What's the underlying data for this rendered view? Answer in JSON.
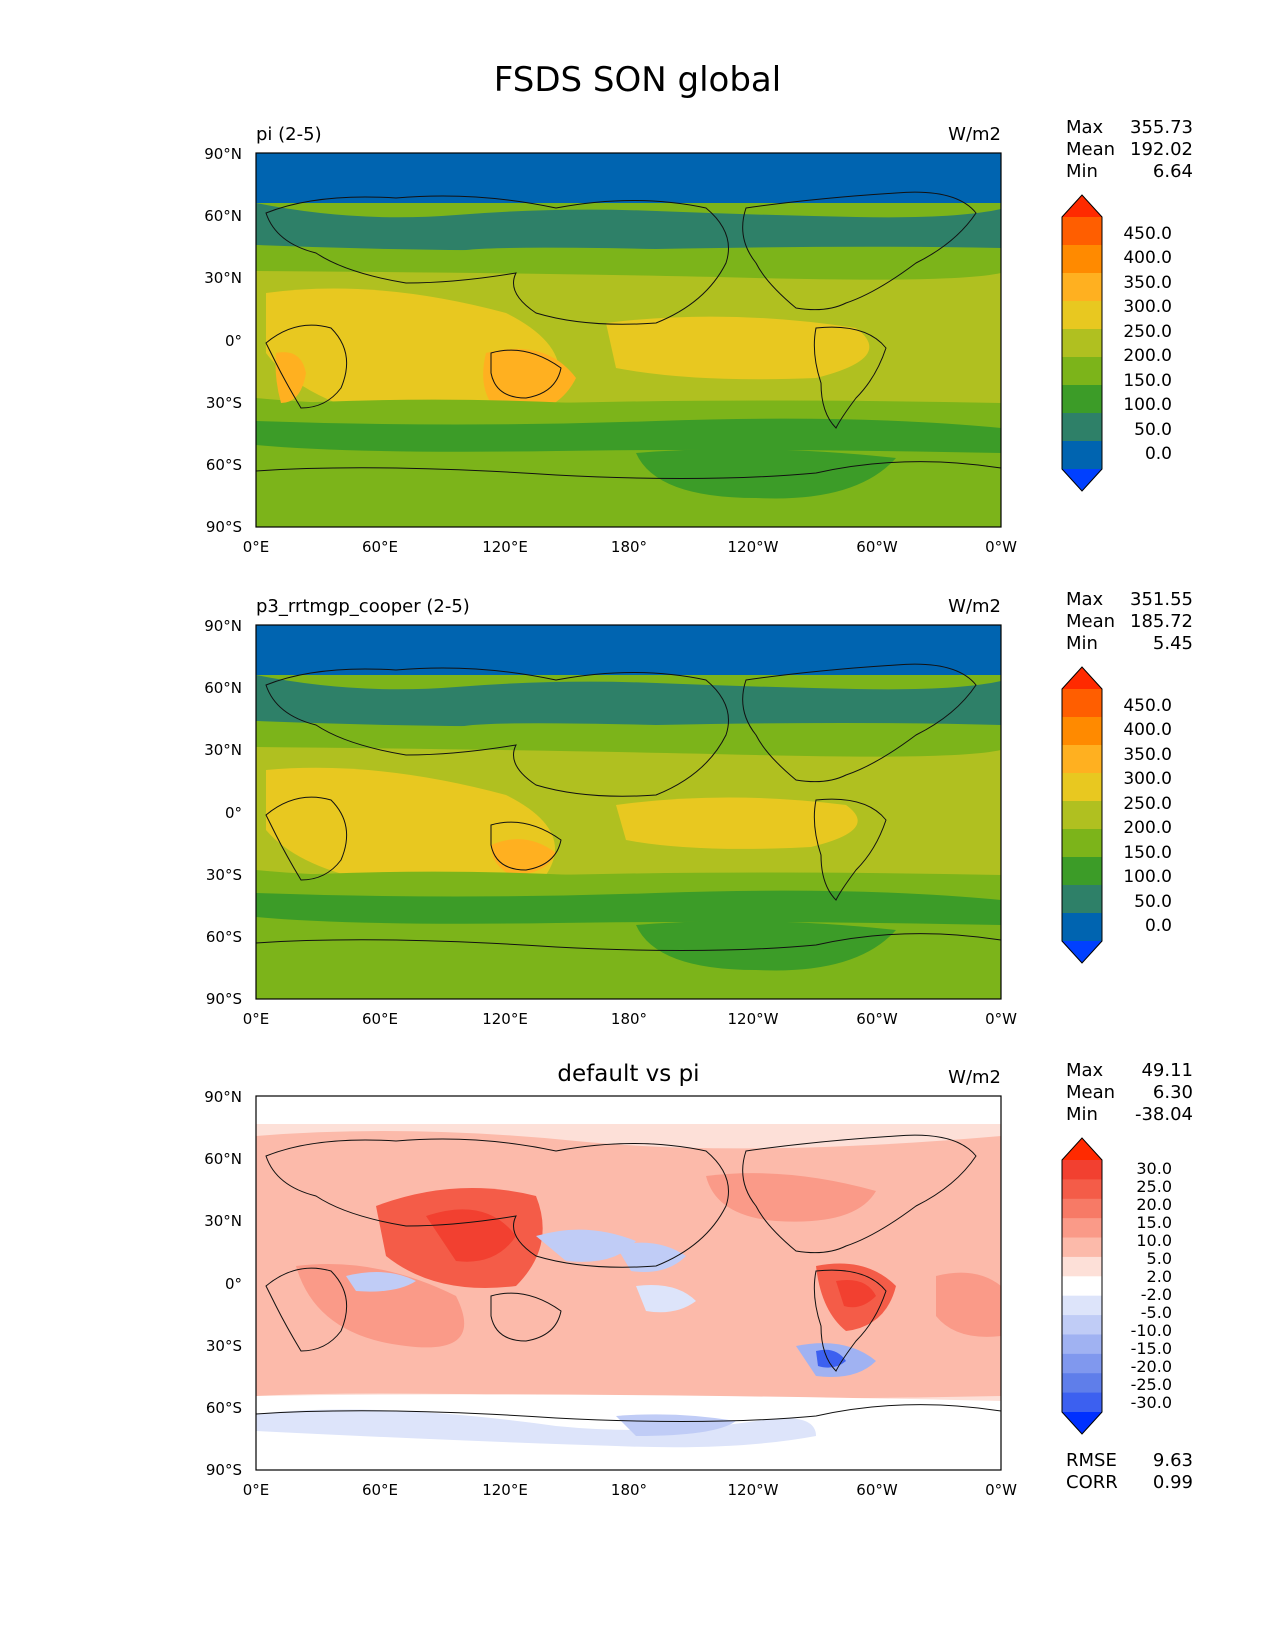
{
  "title": "FSDS SON global",
  "panels": [
    {
      "title": "pi (2-5)",
      "units": "W/m2",
      "stats": [
        {
          "name": "Max",
          "value": "355.73"
        },
        {
          "name": "Mean",
          "value": "192.02"
        },
        {
          "name": "Min",
          "value": "6.64"
        }
      ],
      "colorbar_labels": [
        "450.0",
        "400.0",
        "350.0",
        "300.0",
        "250.0",
        "200.0",
        "150.0",
        "100.0",
        "50.0",
        "0.0"
      ],
      "colorbar_colors_top_to_bottom": [
        "#ff2a00",
        "#ff5e00",
        "#ff8a00",
        "#ffb020",
        "#e8c820",
        "#b0c020",
        "#7cb41a",
        "#3c9c28",
        "#2e8068",
        "#0064b0",
        "#0040ff"
      ]
    },
    {
      "title": "p3_rrtmgp_cooper (2-5)",
      "units": "W/m2",
      "stats": [
        {
          "name": "Max",
          "value": "351.55"
        },
        {
          "name": "Mean",
          "value": "185.72"
        },
        {
          "name": "Min",
          "value": "5.45"
        }
      ],
      "colorbar_labels": [
        "450.0",
        "400.0",
        "350.0",
        "300.0",
        "250.0",
        "200.0",
        "150.0",
        "100.0",
        "50.0",
        "0.0"
      ],
      "colorbar_colors_top_to_bottom": [
        "#ff2a00",
        "#ff5e00",
        "#ff8a00",
        "#ffb020",
        "#e8c820",
        "#b0c020",
        "#7cb41a",
        "#3c9c28",
        "#2e8068",
        "#0064b0",
        "#0040ff"
      ]
    },
    {
      "title": "default vs pi",
      "units": "W/m2",
      "stats": [
        {
          "name": "Max",
          "value": "49.11"
        },
        {
          "name": "Mean",
          "value": "6.30"
        },
        {
          "name": "Min",
          "value": "-38.04"
        }
      ],
      "colorbar_labels": [
        "30.0",
        "25.0",
        "20.0",
        "15.0",
        "10.0",
        "5.0",
        "2.0",
        "-2.0",
        "-5.0",
        "-10.0",
        "-15.0",
        "-20.0",
        "-25.0",
        "-30.0"
      ],
      "colorbar_colors_top_to_bottom": [
        "#ff2a00",
        "#f24030",
        "#f45c48",
        "#f77a66",
        "#fa9a88",
        "#fcbaaa",
        "#fde0d8",
        "#ffffff",
        "#dde4fa",
        "#c0ccf6",
        "#a0b2f2",
        "#8098ee",
        "#5f7eea",
        "#3c60f0",
        "#0030ff"
      ],
      "extra_stats": [
        {
          "name": "RMSE",
          "value": "9.63"
        },
        {
          "name": "CORR",
          "value": "0.99"
        }
      ]
    }
  ],
  "axes": {
    "lat_labels": [
      "90°N",
      "60°N",
      "30°N",
      "0°",
      "30°S",
      "60°S",
      "90°S"
    ],
    "lon_labels": [
      "0°E",
      "60°E",
      "120°E",
      "180°",
      "120°W",
      "60°W",
      "0°W"
    ]
  }
}
